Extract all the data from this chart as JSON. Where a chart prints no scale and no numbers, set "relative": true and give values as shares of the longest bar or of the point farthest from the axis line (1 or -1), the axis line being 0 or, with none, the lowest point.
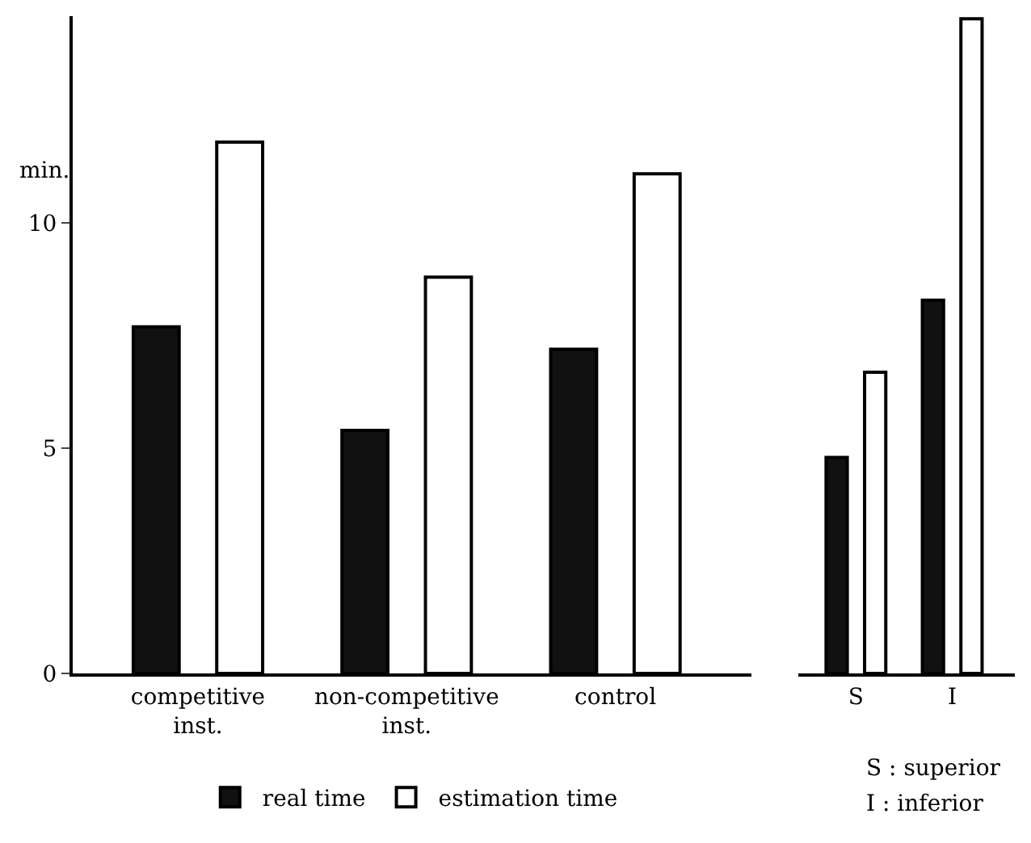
{
  "chart_data": [
    {
      "type": "bar",
      "ylabel": "min.",
      "categories": [
        "competitive\ninst.",
        "non-competitive\ninst.",
        "control"
      ],
      "series": [
        {
          "name": "real time",
          "color": "#111111",
          "values": [
            7.7,
            5.4,
            7.2
          ]
        },
        {
          "name": "estimation time",
          "color": "#ffffff",
          "values": [
            11.8,
            8.8,
            11.1
          ]
        }
      ],
      "ylim": [
        0,
        14.6
      ],
      "yticks": [
        0,
        5,
        10
      ],
      "legend": "bottom"
    },
    {
      "type": "bar",
      "categories": [
        "S",
        "I"
      ],
      "series": [
        {
          "color": "#111111",
          "values": [
            0.33,
            0.57
          ]
        },
        {
          "color": "#ffffff",
          "values": [
            0.46,
            1
          ]
        }
      ],
      "relative": true,
      "legend": false,
      "annotations": [
        "S : superior",
        "I : inferior"
      ]
    }
  ]
}
